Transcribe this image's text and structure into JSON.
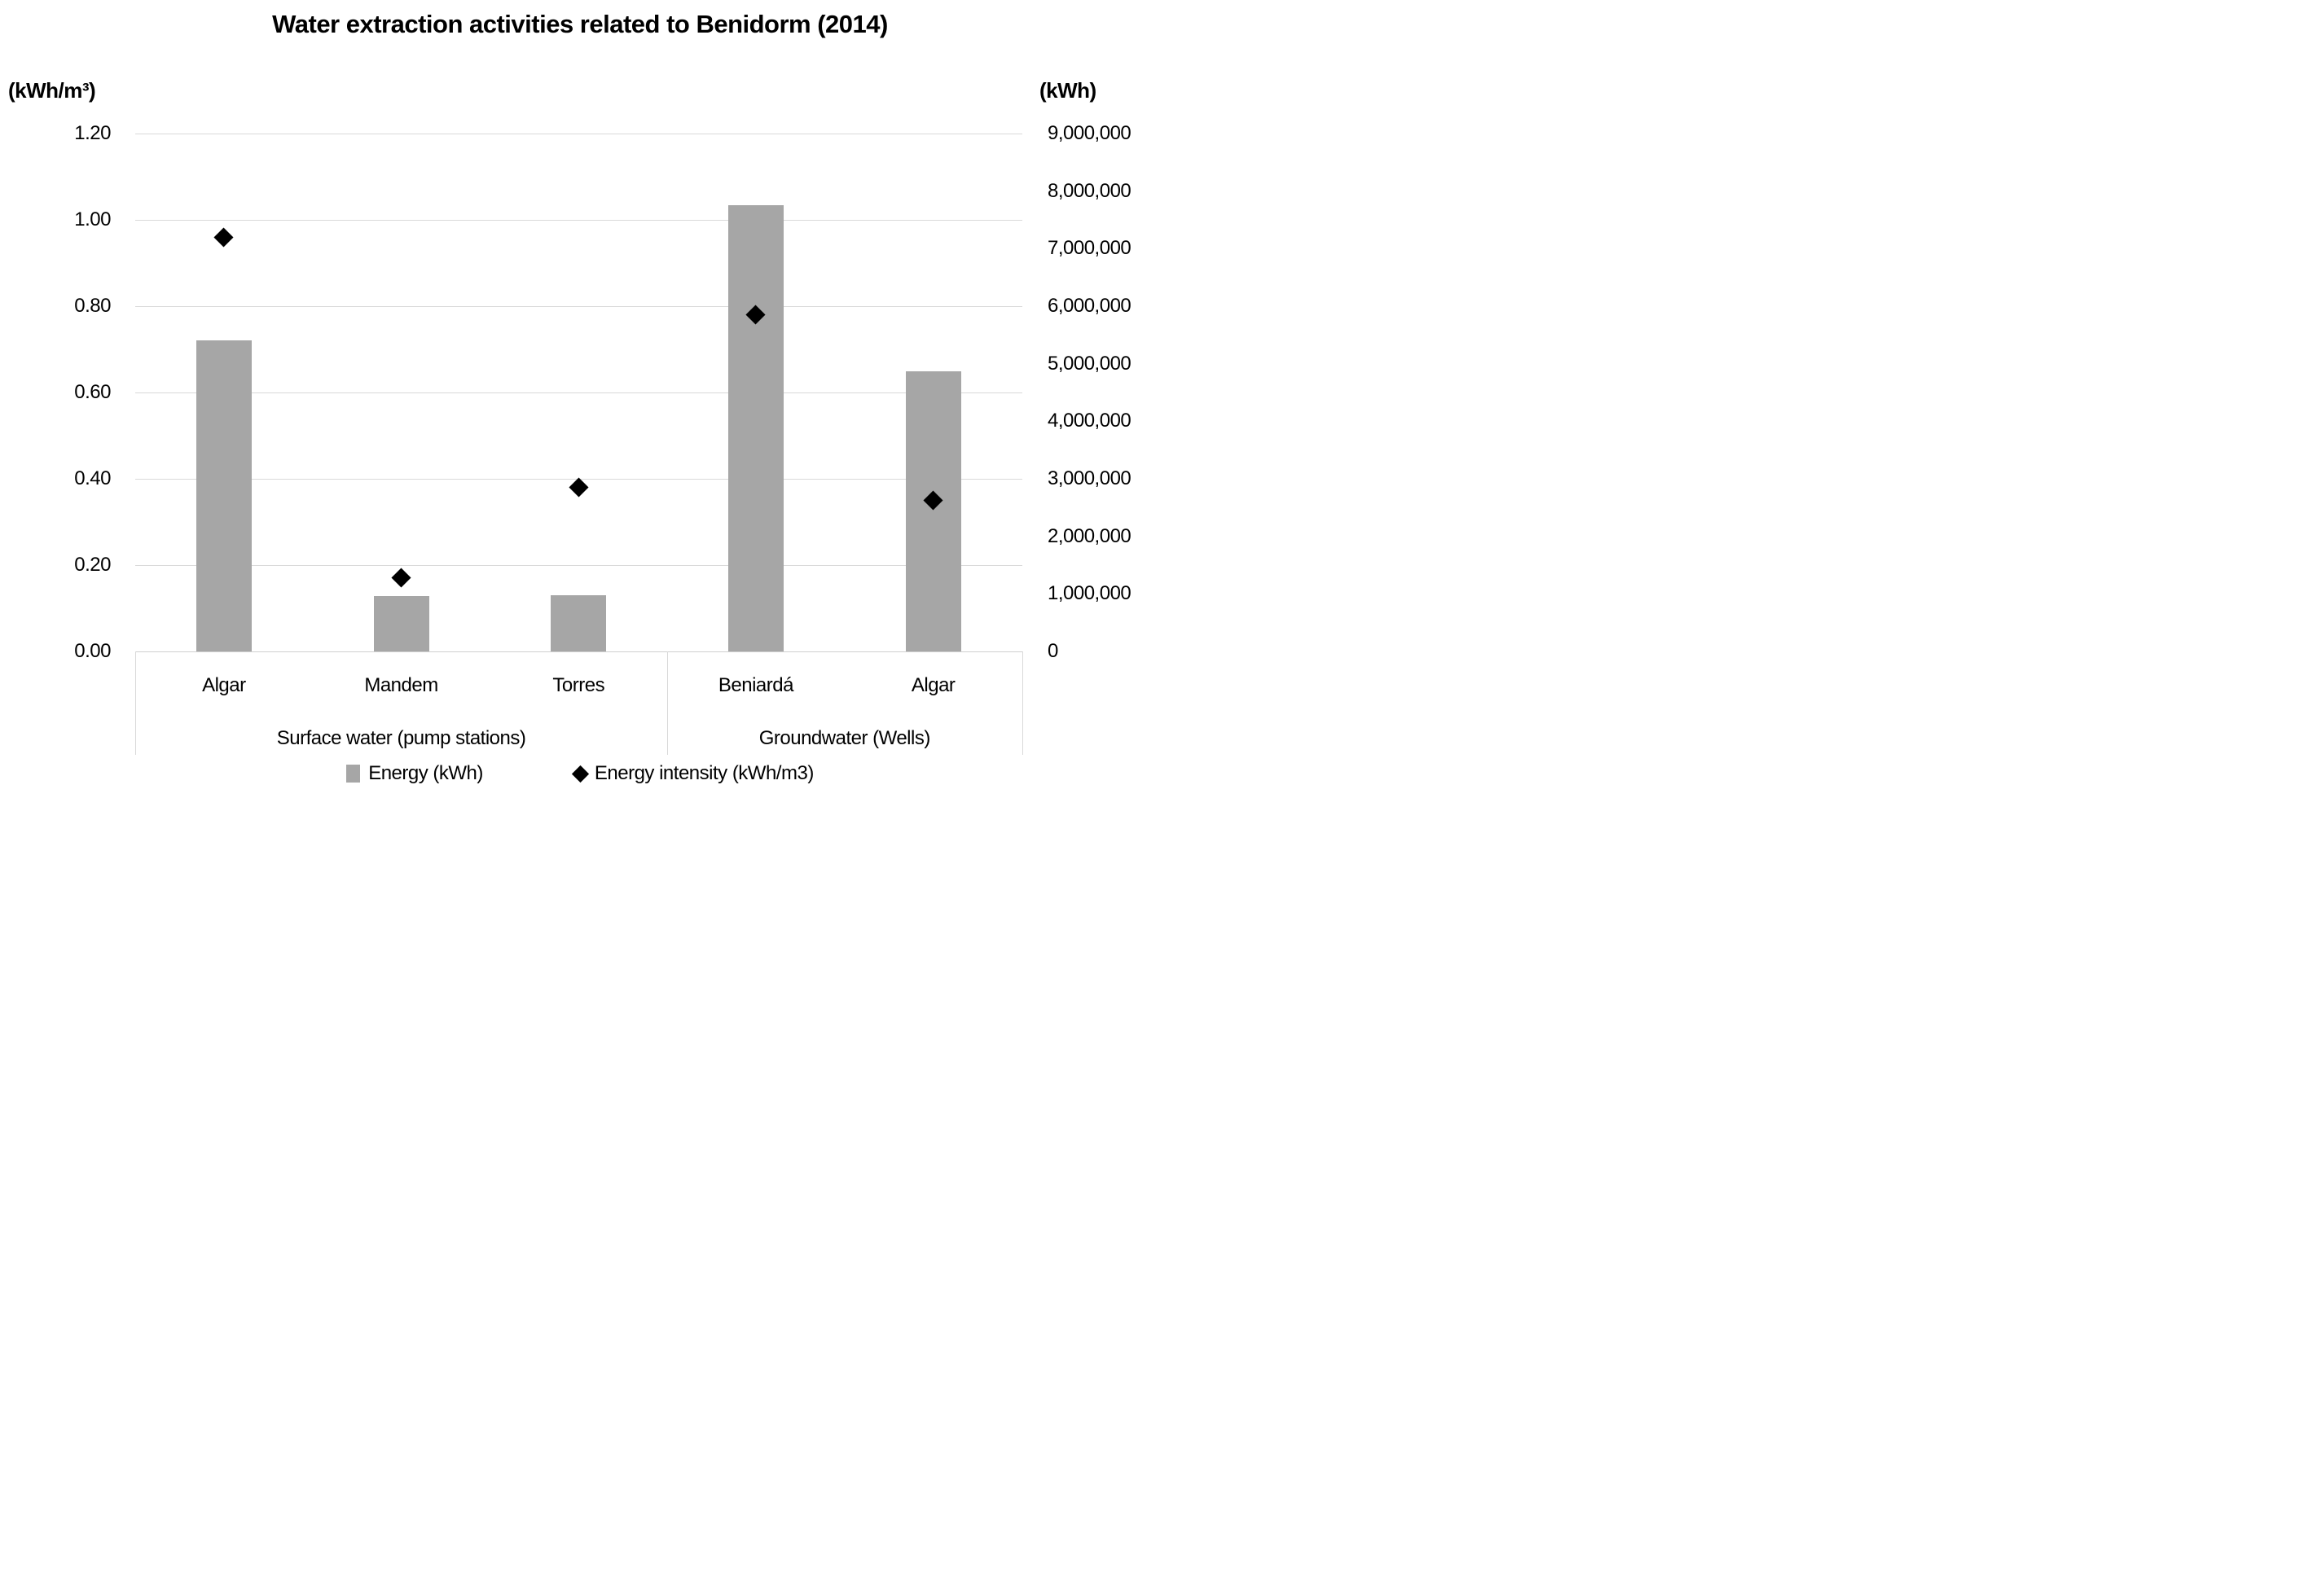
{
  "chart_data": {
    "type": "combo(bar+scatter)",
    "title": "Water extraction activities related to Benidorm (2014)",
    "groups": [
      {
        "label": "Surface water (pump stations)",
        "categories": [
          "Algar",
          "Mandem",
          "Torres"
        ]
      },
      {
        "label": "Groundwater (Wells)",
        "categories": [
          "Beniardá",
          "Algar"
        ]
      }
    ],
    "series": [
      {
        "name": "Energy (kWh)",
        "type": "bar",
        "axis": "right",
        "color": "#A6A6A6",
        "values": [
          5400000,
          960000,
          975000,
          7750000,
          4875000
        ]
      },
      {
        "name": "Energy intensity (kWh/m3)",
        "type": "scatter",
        "marker": "diamond",
        "axis": "left",
        "color": "#000000",
        "values": [
          0.96,
          0.17,
          0.38,
          0.78,
          0.35
        ]
      }
    ],
    "axes": {
      "left": {
        "unit": "(kWh/m³)",
        "min": 0,
        "max": 1.2,
        "step": 0.2,
        "tick_labels": [
          "1.20",
          "1.00",
          "0.80",
          "0.60",
          "0.40",
          "0.20",
          "0.00"
        ]
      },
      "right": {
        "unit": "(kWh)",
        "min": 0,
        "max": 9000000,
        "step": 1000000,
        "tick_labels": [
          "9,000,000",
          "8,000,000",
          "7,000,000",
          "6,000,000",
          "5,000,000",
          "4,000,000",
          "3,000,000",
          "2,000,000",
          "1,000,000",
          "0"
        ]
      }
    },
    "grid": true,
    "legend_position": "bottom",
    "colors": {
      "bar": "#A6A6A6",
      "marker": "#000000",
      "gridline": "#D9D9D9",
      "background": "#FFFFFF",
      "text": "#000000"
    }
  }
}
